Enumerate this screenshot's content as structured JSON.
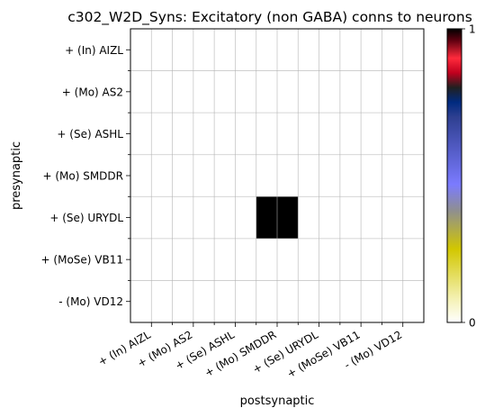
{
  "chart_data": {
    "type": "heatmap",
    "title": "c302_W2D_Syns: Excitatory (non GABA) conns to neurons",
    "xlabel": "postsynaptic",
    "ylabel": "presynaptic",
    "x_categories": [
      "+ (In) AIZL",
      "+ (Mo) AS2",
      "+ (Se) ASHL",
      "+ (Mo) SMDDR",
      "+ (Se) URYDL",
      "+ (MoSe) VB11",
      "- (Mo) VD12"
    ],
    "y_categories": [
      "+ (In) AIZL",
      "+ (Mo) AS2",
      "+ (Se) ASHL",
      "+ (Mo) SMDDR",
      "+ (Se) URYDL",
      "+ (MoSe) VB11",
      "- (Mo) VD12"
    ],
    "values": [
      [
        0,
        0,
        0,
        0,
        0,
        0,
        0
      ],
      [
        0,
        0,
        0,
        0,
        0,
        0,
        0
      ],
      [
        0,
        0,
        0,
        0,
        0,
        0,
        0
      ],
      [
        0,
        0,
        0,
        0,
        0,
        0,
        0
      ],
      [
        0,
        0,
        0,
        1,
        0,
        0,
        0
      ],
      [
        0,
        0,
        0,
        0,
        0,
        0,
        0
      ],
      [
        0,
        0,
        0,
        0,
        0,
        0,
        0
      ]
    ],
    "colorbar": {
      "min": 0,
      "max": 1,
      "tick_labels": [
        "0",
        "1"
      ]
    },
    "colormap": "gist_stern_r",
    "grid": true
  }
}
